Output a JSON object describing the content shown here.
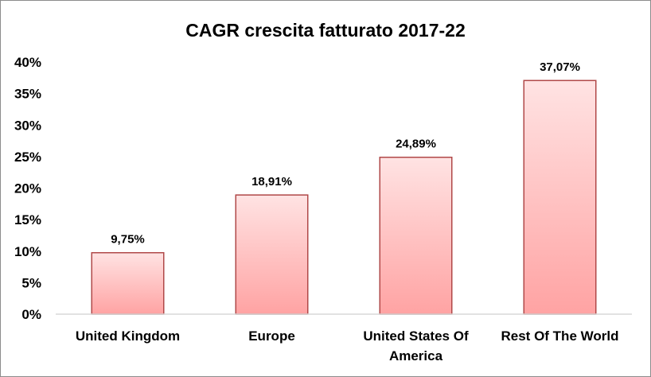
{
  "chart_data": {
    "type": "bar",
    "title": "CAGR crescita fatturato 2017-22",
    "categories": [
      "United Kingdom",
      "Europe",
      "United States Of America",
      "Rest Of The World"
    ],
    "category_lines": [
      [
        "United Kingdom"
      ],
      [
        "Europe"
      ],
      [
        "United States Of",
        "America"
      ],
      [
        "Rest Of The World"
      ]
    ],
    "values": [
      9.75,
      18.91,
      24.89,
      37.07
    ],
    "data_labels": [
      "9,75%",
      "18,91%",
      "24,89%",
      "37,07%"
    ],
    "yticks": [
      "0%",
      "5%",
      "10%",
      "15%",
      "20%",
      "25%",
      "30%",
      "35%",
      "40%"
    ],
    "ylim": [
      0,
      40
    ],
    "xlabel": "",
    "ylabel": "",
    "grid": false,
    "legend": "none",
    "colors": {
      "bar_top": "#ffe3e3",
      "bar_bottom": "#ffa3a3",
      "bar_border": "#b04848",
      "axis": "#d9d9d9",
      "frame": "#8c8c8c"
    }
  }
}
